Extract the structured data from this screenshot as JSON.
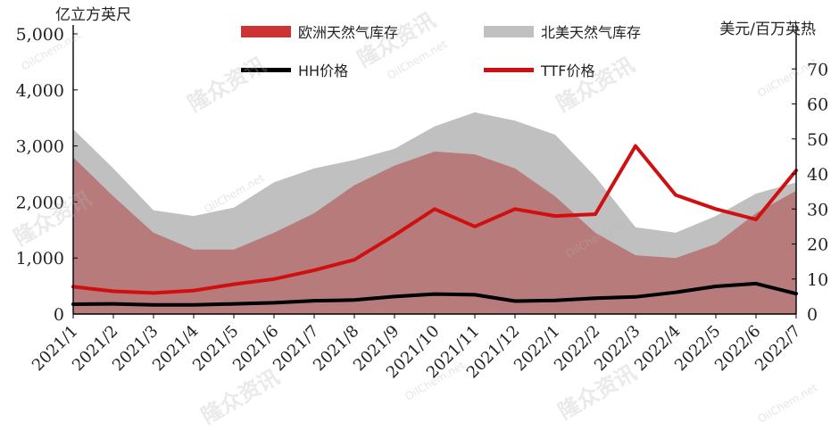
{
  "chart_data": {
    "type": "area",
    "left_axis": {
      "unit": "亿立方英尺",
      "ylim": [
        0,
        5000
      ],
      "ticks": [
        "0",
        "1,000",
        "2,000",
        "3,000",
        "4,000",
        "5,000"
      ]
    },
    "right_axis": {
      "unit": "美元/百万英热",
      "ylim": [
        0,
        80
      ],
      "ticks": [
        "0",
        "10",
        "20",
        "30",
        "40",
        "50",
        "60",
        "70"
      ]
    },
    "x_tick_labels": [
      "2021/1",
      "2021/2",
      "2021/3",
      "2021/4",
      "2021/5",
      "2021/6",
      "2021/7",
      "2021/8",
      "2021/9",
      "2021/10",
      "2021/11",
      "2021/12",
      "2022/1",
      "2022/2",
      "2022/3",
      "2022/4",
      "2022/5",
      "2022/6",
      "2022/7"
    ],
    "x": [
      "2021-01-01",
      "2021-02-01",
      "2021-03-01",
      "2021-04-01",
      "2021-05-01",
      "2021-06-01",
      "2021-07-01",
      "2021-08-01",
      "2021-09-01",
      "2021-10-01",
      "2021-11-01",
      "2021-12-01",
      "2022-01-01",
      "2022-02-01",
      "2022-03-01",
      "2022-04-01",
      "2022-05-01",
      "2022-06-01",
      "2022-07-01"
    ],
    "grid": false,
    "legend_position": "top",
    "series": [
      {
        "name": "北美天然气库存",
        "kind": "area",
        "axis": "left",
        "color": "#c0c0c0",
        "values": [
          3300,
          2600,
          1850,
          1750,
          1900,
          2350,
          2600,
          2750,
          2950,
          3350,
          3600,
          3450,
          3200,
          2450,
          1550,
          1450,
          1750,
          2150,
          2350
        ]
      },
      {
        "name": "欧洲天然气库存",
        "kind": "area",
        "axis": "left",
        "color": "#b77b7b",
        "values": [
          2800,
          2100,
          1450,
          1150,
          1150,
          1450,
          1800,
          2300,
          2650,
          2900,
          2850,
          2600,
          2100,
          1450,
          1050,
          1000,
          1250,
          1800,
          2200
        ]
      },
      {
        "name": "HH价格",
        "kind": "line",
        "axis": "right",
        "color": "#000000",
        "values": [
          2.8,
          2.9,
          2.6,
          2.6,
          2.9,
          3.2,
          3.8,
          4.0,
          5.0,
          5.7,
          5.5,
          3.7,
          3.9,
          4.5,
          4.9,
          6.2,
          7.9,
          8.7,
          5.8
        ]
      },
      {
        "name": "TTF价格",
        "kind": "line",
        "axis": "right",
        "color": "#d01010",
        "values": [
          7.8,
          6.5,
          6.0,
          6.7,
          8.5,
          10.0,
          12.5,
          15.5,
          22.5,
          30.0,
          25.0,
          30.0,
          28.0,
          28.5,
          48.0,
          34.0,
          30.0,
          27.0,
          41.0
        ]
      }
    ]
  },
  "watermark": {
    "text_cn": "隆众资讯",
    "text_en": "OilChem.net"
  }
}
